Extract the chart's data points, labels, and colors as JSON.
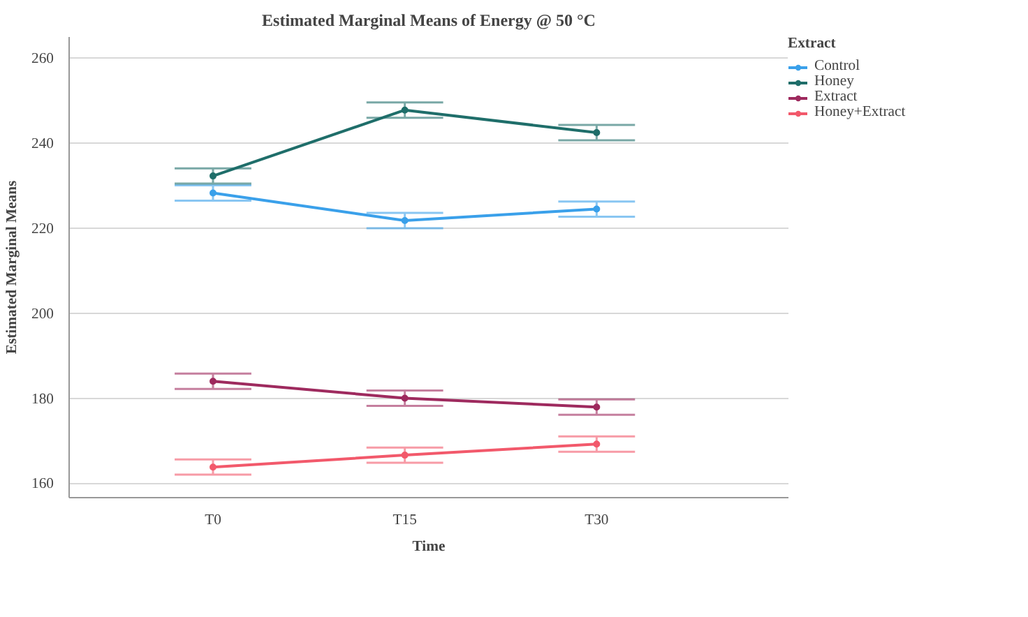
{
  "chart_data": {
    "type": "line",
    "title": "Estimated Marginal Means of Energy @ 50 °C",
    "xlabel": "Time",
    "ylabel": "Estimated Marginal Means",
    "legend_title": "Extract",
    "categories": [
      "T0",
      "T15",
      "T30"
    ],
    "series": [
      {
        "name": "Control",
        "color": "#3aa0ea",
        "values": [
          228.3,
          221.8,
          224.5
        ],
        "errors": [
          1.8,
          1.8,
          1.8
        ]
      },
      {
        "name": "Honey",
        "color": "#1f6e6a",
        "values": [
          232.3,
          247.8,
          242.5
        ],
        "errors": [
          1.8,
          1.8,
          1.8
        ]
      },
      {
        "name": "Extract",
        "color": "#9e2a5e",
        "values": [
          184.0,
          180.0,
          177.9
        ],
        "errors": [
          1.8,
          1.8,
          1.8
        ]
      },
      {
        "name": "Honey+Extract",
        "color": "#f2596b",
        "values": [
          163.8,
          166.6,
          169.2
        ],
        "errors": [
          1.8,
          1.8,
          1.8
        ]
      }
    ],
    "ylim": [
      156.6,
      265
    ],
    "yticks": [
      160,
      180,
      200,
      220,
      240,
      260
    ],
    "grid": "y",
    "legend": "top right",
    "marker": "circle",
    "line_style": "solid"
  }
}
